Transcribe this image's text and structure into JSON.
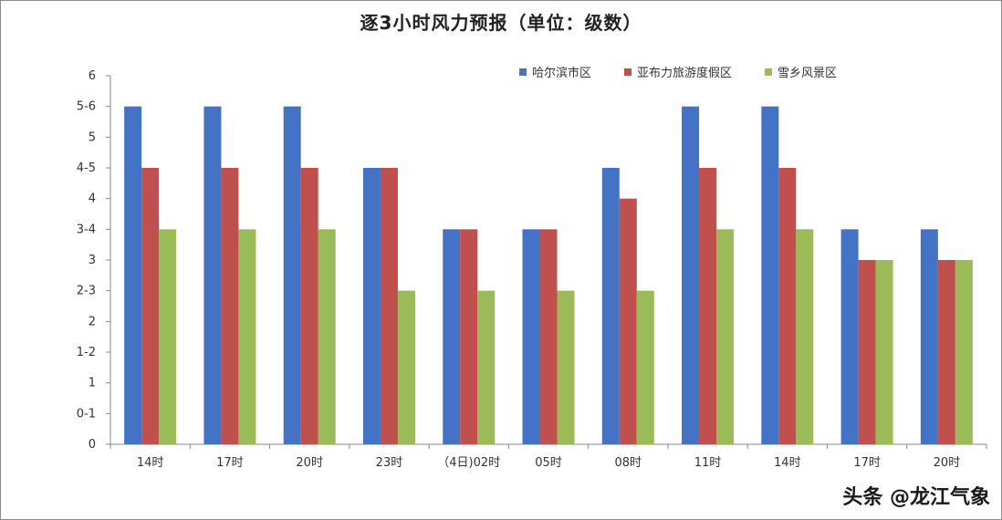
{
  "chart_data": {
    "type": "bar",
    "title": "逐3小时风力预报（单位：级数）",
    "categories": [
      "14时",
      "17时",
      "20时",
      "23时",
      "（4日)02时",
      "05时",
      "08时",
      "11时",
      "14时",
      "17时",
      "20时"
    ],
    "y_ticks": [
      "0",
      "0-1",
      "1",
      "1-2",
      "2",
      "2-3",
      "3",
      "3-4",
      "4",
      "4-5",
      "5",
      "5-6",
      "6"
    ],
    "ylim": [
      0,
      6
    ],
    "series": [
      {
        "name": "哈尔滨市区",
        "color": "#4472c4",
        "values": [
          5.5,
          5.5,
          5.5,
          4.5,
          3.5,
          3.5,
          4.5,
          5.5,
          5.5,
          3.5,
          3.5
        ]
      },
      {
        "name": "亚布力旅游度假区",
        "color": "#c0504d",
        "values": [
          4.5,
          4.5,
          4.5,
          4.5,
          3.5,
          3.5,
          4,
          4.5,
          4.5,
          3,
          3
        ]
      },
      {
        "name": "雪乡风景区",
        "color": "#9bbb59",
        "values": [
          3.5,
          3.5,
          3.5,
          2.5,
          2.5,
          2.5,
          2.5,
          3.5,
          3.5,
          3,
          3
        ]
      }
    ],
    "legend_position": "top-right",
    "grid": false
  },
  "watermark": "头条 @龙江气象"
}
